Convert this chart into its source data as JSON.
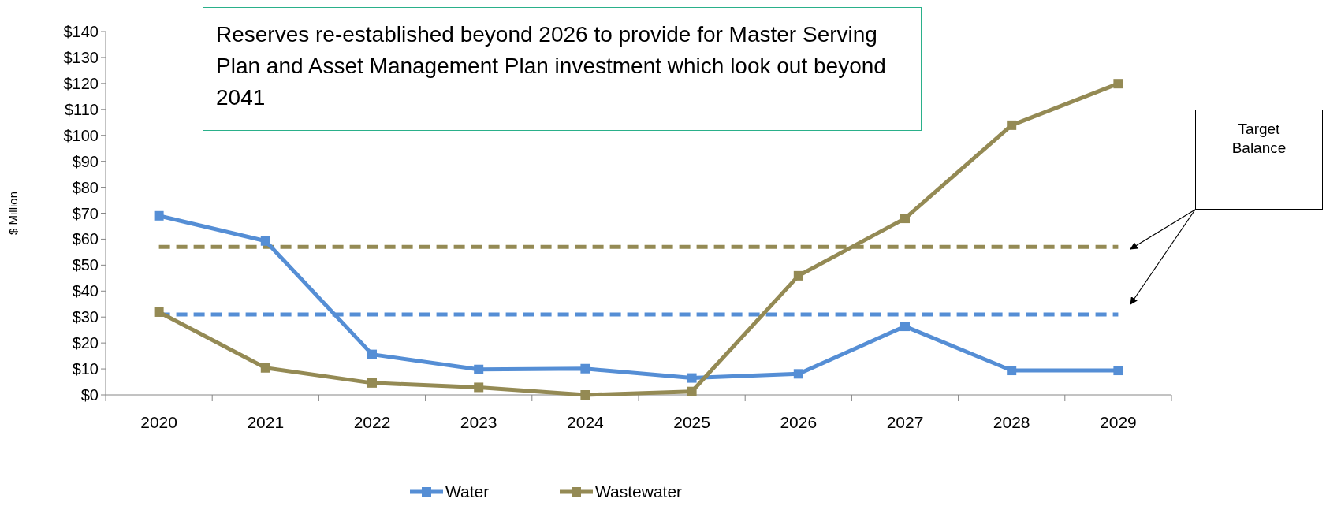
{
  "chart_data": {
    "type": "line",
    "ylabel": "$ Million",
    "categories": [
      "2020",
      "2021",
      "2022",
      "2023",
      "2024",
      "2025",
      "2026",
      "2027",
      "2028",
      "2029"
    ],
    "series": [
      {
        "name": "Water",
        "color": "#558ed5",
        "values": [
          69,
          59.3,
          15.6,
          9.8,
          10.1,
          6.5,
          8.1,
          26.4,
          9.4,
          9.4
        ]
      },
      {
        "name": "Wastewater",
        "color": "#948a54",
        "values": [
          31.9,
          10.4,
          4.6,
          2.9,
          0,
          1.3,
          45.9,
          68,
          103.9,
          119.9
        ]
      }
    ],
    "ylim": [
      0,
      140
    ],
    "yticks": [
      {
        "value": 0,
        "label": "$0"
      },
      {
        "value": 10,
        "label": "$10"
      },
      {
        "value": 20,
        "label": "$20"
      },
      {
        "value": 30,
        "label": "$30"
      },
      {
        "value": 40,
        "label": "$40"
      },
      {
        "value": 50,
        "label": "$50"
      },
      {
        "value": 60,
        "label": "$60"
      },
      {
        "value": 70,
        "label": "$70"
      },
      {
        "value": 80,
        "label": "$80"
      },
      {
        "value": 90,
        "label": "$90"
      },
      {
        "value": 100,
        "label": "$100"
      },
      {
        "value": 110,
        "label": "$110"
      },
      {
        "value": 120,
        "label": "$120"
      },
      {
        "value": 130,
        "label": "$130"
      },
      {
        "value": 140,
        "label": "$140"
      }
    ],
    "ref_lines": [
      {
        "axis": "y",
        "value": 57,
        "color": "#948a54",
        "line_style": "dashed"
      },
      {
        "axis": "y",
        "value": 31,
        "color": "#558ed5",
        "line_style": "dashed"
      }
    ],
    "annotations": [
      "Reserves re-established beyond 2026 to provide for Master Serving Plan and Asset Management Plan investment which look out beyond 2041",
      "Target Balance"
    ],
    "marker": "square",
    "line_style": "solid",
    "legend": "bottom",
    "grid": false
  }
}
